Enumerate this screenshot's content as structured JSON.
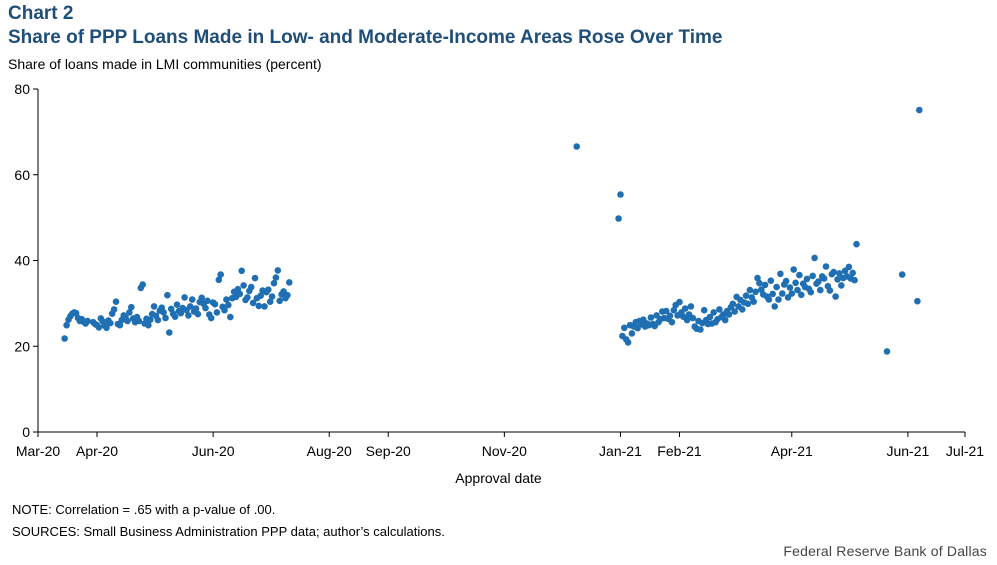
{
  "header": {
    "label": "Chart 2",
    "title": "Share of PPP Loans Made in Low- and Moderate-Income Areas Rose Over Time",
    "y_unit": "Share of loans made in LMI communities (percent)"
  },
  "footer": {
    "note": "NOTE: Correlation = .65 with a p-value of .00.",
    "sources": "SOURCES: Small Business Administration PPP data; author’s calculations.",
    "credit": "Federal Reserve Bank of Dallas"
  },
  "colors": {
    "title": "#1f4e79",
    "marker": "#1f6fb2"
  },
  "chart_data": {
    "type": "scatter",
    "xlabel": "Approval date",
    "ylabel": "Share of loans made in LMI communities (percent)",
    "ylim": [
      0,
      80
    ],
    "yticks": [
      0,
      20,
      40,
      60,
      80
    ],
    "xlim": [
      "2020-03-01",
      "2021-07-01"
    ],
    "xticks": [
      {
        "date": "2020-03-01",
        "label": "Mar-20"
      },
      {
        "date": "2020-04-01",
        "label": "Apr-20"
      },
      {
        "date": "2020-06-01",
        "label": "Jun-20"
      },
      {
        "date": "2020-08-01",
        "label": "Aug-20"
      },
      {
        "date": "2020-09-01",
        "label": "Sep-20"
      },
      {
        "date": "2020-11-01",
        "label": "Nov-20"
      },
      {
        "date": "2021-01-01",
        "label": "Jan-21"
      },
      {
        "date": "2021-02-01",
        "label": "Feb-21"
      },
      {
        "date": "2021-04-01",
        "label": "Apr-21"
      },
      {
        "date": "2021-06-01",
        "label": "Jun-21"
      },
      {
        "date": "2021-07-01",
        "label": "Jul-21"
      }
    ],
    "grid": false,
    "legend": "none",
    "points": [
      [
        "2020-03-15",
        21.8
      ],
      [
        "2020-03-16",
        24.9
      ],
      [
        "2020-03-17",
        26.2
      ],
      [
        "2020-03-18",
        27.0
      ],
      [
        "2020-03-19",
        27.6
      ],
      [
        "2020-03-20",
        27.9
      ],
      [
        "2020-03-21",
        27.7
      ],
      [
        "2020-03-22",
        26.6
      ],
      [
        "2020-03-23",
        25.9
      ],
      [
        "2020-03-24",
        26.3
      ],
      [
        "2020-03-25",
        25.7
      ],
      [
        "2020-03-26",
        25.3
      ],
      [
        "2020-03-27",
        25.9
      ],
      [
        "2020-03-30",
        25.6
      ],
      [
        "2020-03-31",
        25.2
      ],
      [
        "2020-04-01",
        24.9
      ],
      [
        "2020-04-02",
        24.4
      ],
      [
        "2020-04-03",
        26.5
      ],
      [
        "2020-04-04",
        25.8
      ],
      [
        "2020-04-05",
        24.8
      ],
      [
        "2020-04-06",
        24.3
      ],
      [
        "2020-04-07",
        26.0
      ],
      [
        "2020-04-08",
        25.4
      ],
      [
        "2020-04-09",
        27.6
      ],
      [
        "2020-04-10",
        28.6
      ],
      [
        "2020-04-11",
        30.4
      ],
      [
        "2020-04-12",
        25.2
      ],
      [
        "2020-04-13",
        24.9
      ],
      [
        "2020-04-14",
        26.1
      ],
      [
        "2020-04-15",
        27.2
      ],
      [
        "2020-04-16",
        26.7
      ],
      [
        "2020-04-17",
        25.9
      ],
      [
        "2020-04-18",
        27.9
      ],
      [
        "2020-04-19",
        29.1
      ],
      [
        "2020-04-20",
        26.5
      ],
      [
        "2020-04-21",
        25.6
      ],
      [
        "2020-04-22",
        26.8
      ],
      [
        "2020-04-23",
        25.9
      ],
      [
        "2020-04-24",
        33.6
      ],
      [
        "2020-04-25",
        34.4
      ],
      [
        "2020-04-26",
        25.3
      ],
      [
        "2020-04-27",
        26.4
      ],
      [
        "2020-04-28",
        24.9
      ],
      [
        "2020-04-29",
        26.2
      ],
      [
        "2020-04-30",
        27.5
      ],
      [
        "2020-05-01",
        29.3
      ],
      [
        "2020-05-02",
        27.1
      ],
      [
        "2020-05-03",
        26.1
      ],
      [
        "2020-05-04",
        28.3
      ],
      [
        "2020-05-05",
        29.0
      ],
      [
        "2020-05-06",
        27.9
      ],
      [
        "2020-05-07",
        26.6
      ],
      [
        "2020-05-08",
        31.9
      ],
      [
        "2020-05-09",
        23.2
      ],
      [
        "2020-05-10",
        28.7
      ],
      [
        "2020-05-11",
        27.6
      ],
      [
        "2020-05-12",
        26.9
      ],
      [
        "2020-05-13",
        29.7
      ],
      [
        "2020-05-14",
        28.2
      ],
      [
        "2020-05-15",
        27.7
      ],
      [
        "2020-05-16",
        28.9
      ],
      [
        "2020-05-17",
        31.4
      ],
      [
        "2020-05-18",
        28.4
      ],
      [
        "2020-05-19",
        27.2
      ],
      [
        "2020-05-20",
        29.3
      ],
      [
        "2020-05-21",
        30.9
      ],
      [
        "2020-05-22",
        28.1
      ],
      [
        "2020-05-23",
        28.8
      ],
      [
        "2020-05-24",
        27.5
      ],
      [
        "2020-05-25",
        30.3
      ],
      [
        "2020-05-26",
        31.3
      ],
      [
        "2020-05-27",
        29.9
      ],
      [
        "2020-05-28",
        28.9
      ],
      [
        "2020-05-29",
        30.6
      ],
      [
        "2020-05-30",
        27.4
      ],
      [
        "2020-05-31",
        26.6
      ],
      [
        "2020-06-01",
        30.2
      ],
      [
        "2020-06-02",
        29.8
      ],
      [
        "2020-06-03",
        27.9
      ],
      [
        "2020-06-04",
        35.5
      ],
      [
        "2020-06-05",
        36.7
      ],
      [
        "2020-06-06",
        29.2
      ],
      [
        "2020-06-07",
        28.4
      ],
      [
        "2020-06-08",
        30.9
      ],
      [
        "2020-06-09",
        29.6
      ],
      [
        "2020-06-10",
        26.8
      ],
      [
        "2020-06-11",
        31.2
      ],
      [
        "2020-06-12",
        32.7
      ],
      [
        "2020-06-13",
        31.5
      ],
      [
        "2020-06-14",
        33.3
      ],
      [
        "2020-06-15",
        32.2
      ],
      [
        "2020-06-16",
        37.6
      ],
      [
        "2020-06-17",
        34.2
      ],
      [
        "2020-06-18",
        30.8
      ],
      [
        "2020-06-19",
        31.4
      ],
      [
        "2020-06-20",
        32.9
      ],
      [
        "2020-06-21",
        33.8
      ],
      [
        "2020-06-22",
        30.1
      ],
      [
        "2020-06-23",
        35.9
      ],
      [
        "2020-06-24",
        31.2
      ],
      [
        "2020-06-25",
        29.4
      ],
      [
        "2020-06-26",
        31.8
      ],
      [
        "2020-06-27",
        33.0
      ],
      [
        "2020-06-28",
        29.3
      ],
      [
        "2020-06-29",
        32.6
      ],
      [
        "2020-06-30",
        33.2
      ],
      [
        "2020-07-01",
        30.4
      ],
      [
        "2020-07-02",
        31.6
      ],
      [
        "2020-07-03",
        34.7
      ],
      [
        "2020-07-04",
        36.0
      ],
      [
        "2020-07-05",
        37.7
      ],
      [
        "2020-07-06",
        30.6
      ],
      [
        "2020-07-07",
        32.1
      ],
      [
        "2020-07-08",
        32.8
      ],
      [
        "2020-07-09",
        31.2
      ],
      [
        "2020-07-10",
        31.9
      ],
      [
        "2020-07-11",
        34.9
      ],
      [
        "2020-12-09",
        66.6
      ],
      [
        "2020-12-31",
        49.8
      ],
      [
        "2021-01-01",
        55.4
      ],
      [
        "2021-01-02",
        22.4
      ],
      [
        "2021-01-03",
        24.3
      ],
      [
        "2021-01-04",
        21.6
      ],
      [
        "2021-01-05",
        20.9
      ],
      [
        "2021-01-06",
        24.9
      ],
      [
        "2021-01-07",
        23.0
      ],
      [
        "2021-01-08",
        24.6
      ],
      [
        "2021-01-09",
        25.6
      ],
      [
        "2021-01-10",
        24.2
      ],
      [
        "2021-01-11",
        25.9
      ],
      [
        "2021-01-12",
        25.1
      ],
      [
        "2021-01-13",
        26.2
      ],
      [
        "2021-01-14",
        24.6
      ],
      [
        "2021-01-15",
        25.3
      ],
      [
        "2021-01-16",
        24.9
      ],
      [
        "2021-01-17",
        26.7
      ],
      [
        "2021-01-18",
        25.2
      ],
      [
        "2021-01-19",
        24.7
      ],
      [
        "2021-01-20",
        27.2
      ],
      [
        "2021-01-21",
        25.6
      ],
      [
        "2021-01-22",
        26.3
      ],
      [
        "2021-01-23",
        28.1
      ],
      [
        "2021-01-24",
        26.6
      ],
      [
        "2021-01-25",
        28.2
      ],
      [
        "2021-01-26",
        26.4
      ],
      [
        "2021-01-27",
        27.1
      ],
      [
        "2021-01-28",
        25.6
      ],
      [
        "2021-01-29",
        28.4
      ],
      [
        "2021-01-30",
        29.6
      ],
      [
        "2021-01-31",
        27.2
      ],
      [
        "2021-02-01",
        30.3
      ],
      [
        "2021-02-02",
        27.9
      ],
      [
        "2021-02-03",
        26.9
      ],
      [
        "2021-02-04",
        28.8
      ],
      [
        "2021-02-05",
        26.1
      ],
      [
        "2021-02-06",
        27.4
      ],
      [
        "2021-02-07",
        29.3
      ],
      [
        "2021-02-08",
        26.6
      ],
      [
        "2021-02-09",
        24.6
      ],
      [
        "2021-02-10",
        24.1
      ],
      [
        "2021-02-11",
        25.9
      ],
      [
        "2021-02-12",
        23.9
      ],
      [
        "2021-02-13",
        25.4
      ],
      [
        "2021-02-14",
        28.4
      ],
      [
        "2021-02-15",
        26.1
      ],
      [
        "2021-02-16",
        25.2
      ],
      [
        "2021-02-17",
        26.8
      ],
      [
        "2021-02-18",
        25.3
      ],
      [
        "2021-02-19",
        27.9
      ],
      [
        "2021-02-20",
        25.6
      ],
      [
        "2021-02-21",
        26.3
      ],
      [
        "2021-02-22",
        28.6
      ],
      [
        "2021-02-23",
        26.8
      ],
      [
        "2021-02-24",
        27.4
      ],
      [
        "2021-02-25",
        26.1
      ],
      [
        "2021-02-26",
        28.2
      ],
      [
        "2021-02-27",
        27.4
      ],
      [
        "2021-02-28",
        29.1
      ],
      [
        "2021-03-01",
        29.9
      ],
      [
        "2021-03-02",
        28.1
      ],
      [
        "2021-03-03",
        31.5
      ],
      [
        "2021-03-04",
        29.3
      ],
      [
        "2021-03-05",
        30.8
      ],
      [
        "2021-03-06",
        28.6
      ],
      [
        "2021-03-07",
        30.2
      ],
      [
        "2021-03-08",
        31.8
      ],
      [
        "2021-03-09",
        29.9
      ],
      [
        "2021-03-10",
        33.1
      ],
      [
        "2021-03-11",
        31.4
      ],
      [
        "2021-03-12",
        30.4
      ],
      [
        "2021-03-13",
        32.7
      ],
      [
        "2021-03-14",
        35.9
      ],
      [
        "2021-03-15",
        34.7
      ],
      [
        "2021-03-16",
        33.2
      ],
      [
        "2021-03-17",
        32.1
      ],
      [
        "2021-03-18",
        34.3
      ],
      [
        "2021-03-19",
        31.6
      ],
      [
        "2021-03-20",
        30.9
      ],
      [
        "2021-03-21",
        35.3
      ],
      [
        "2021-03-22",
        32.2
      ],
      [
        "2021-03-23",
        29.3
      ],
      [
        "2021-03-24",
        33.8
      ],
      [
        "2021-03-25",
        30.9
      ],
      [
        "2021-03-26",
        36.9
      ],
      [
        "2021-03-27",
        32.3
      ],
      [
        "2021-03-28",
        34.4
      ],
      [
        "2021-03-29",
        35.2
      ],
      [
        "2021-03-30",
        31.4
      ],
      [
        "2021-03-31",
        33.7
      ],
      [
        "2021-04-01",
        32.3
      ],
      [
        "2021-04-02",
        37.9
      ],
      [
        "2021-04-03",
        34.8
      ],
      [
        "2021-04-04",
        33.1
      ],
      [
        "2021-04-05",
        36.6
      ],
      [
        "2021-04-06",
        32.0
      ],
      [
        "2021-04-07",
        34.6
      ],
      [
        "2021-04-08",
        33.8
      ],
      [
        "2021-04-09",
        35.7
      ],
      [
        "2021-04-10",
        33.4
      ],
      [
        "2021-04-11",
        32.6
      ],
      [
        "2021-04-12",
        36.4
      ],
      [
        "2021-04-13",
        40.6
      ],
      [
        "2021-04-14",
        34.6
      ],
      [
        "2021-04-15",
        35.1
      ],
      [
        "2021-04-16",
        33.1
      ],
      [
        "2021-04-17",
        36.3
      ],
      [
        "2021-04-18",
        35.8
      ],
      [
        "2021-04-19",
        38.6
      ],
      [
        "2021-04-20",
        34.0
      ],
      [
        "2021-04-21",
        33.0
      ],
      [
        "2021-04-22",
        36.8
      ],
      [
        "2021-04-23",
        37.3
      ],
      [
        "2021-04-24",
        31.6
      ],
      [
        "2021-04-25",
        35.6
      ],
      [
        "2021-04-26",
        37.0
      ],
      [
        "2021-04-27",
        34.2
      ],
      [
        "2021-04-28",
        35.9
      ],
      [
        "2021-04-29",
        37.6
      ],
      [
        "2021-04-30",
        36.3
      ],
      [
        "2021-05-01",
        38.5
      ],
      [
        "2021-05-02",
        35.8
      ],
      [
        "2021-05-03",
        37.1
      ],
      [
        "2021-05-04",
        35.4
      ],
      [
        "2021-05-05",
        43.8
      ],
      [
        "2021-05-21",
        18.8
      ],
      [
        "2021-05-29",
        36.7
      ],
      [
        "2021-06-06",
        30.5
      ],
      [
        "2021-06-07",
        75.1
      ]
    ]
  }
}
